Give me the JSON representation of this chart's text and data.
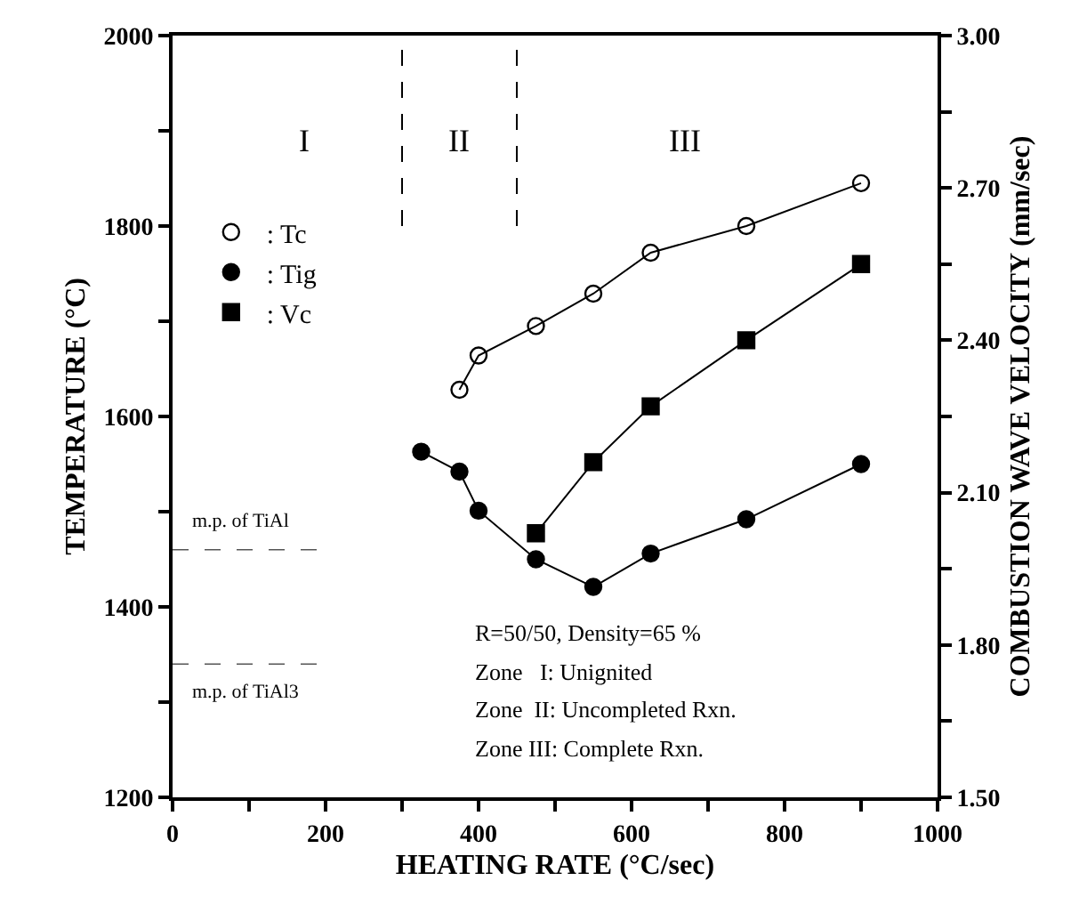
{
  "chart_data": {
    "type": "line",
    "xlabel": "HEATING RATE (°C/sec)",
    "ylabel": "TEMPERATURE (°C)",
    "y2label": "COMBUSTION WAVE VELOCITY (mm/sec)",
    "xlim": [
      0,
      1000
    ],
    "xticks": [
      0,
      {
        "value": 100,
        "label": null
      },
      200,
      {
        "value": 300,
        "label": null
      },
      400,
      {
        "value": 500,
        "label": null
      },
      600,
      {
        "value": 700,
        "label": null
      },
      800,
      {
        "value": 900,
        "label": null
      },
      1000
    ],
    "ylim": [
      1200,
      2000
    ],
    "yticks": [
      1200,
      {
        "value": 1300,
        "label": null
      },
      1400,
      {
        "value": 1500,
        "label": null
      },
      1600,
      {
        "value": 1700,
        "label": null
      },
      1800,
      {
        "value": 1900,
        "label": null
      },
      2000
    ],
    "y2lim": [
      1.5,
      3.0
    ],
    "y2ticks": [
      {
        "value": 1.5,
        "label": "1.50"
      },
      {
        "value": 1.65,
        "label": null
      },
      {
        "value": 1.8,
        "label": "1.80"
      },
      {
        "value": 1.95,
        "label": null
      },
      {
        "value": 2.1,
        "label": "2.10"
      },
      {
        "value": 2.25,
        "label": null
      },
      {
        "value": 2.4,
        "label": "2.40"
      },
      {
        "value": 2.55,
        "label": null
      },
      {
        "value": 2.7,
        "label": "2.70"
      },
      {
        "value": 2.85,
        "label": null
      },
      {
        "value": 3.0,
        "label": "3.00"
      }
    ],
    "legend": "top left",
    "line_style": "solid",
    "series": [
      {
        "name": ": Tc",
        "color": "#000000",
        "marker": "circle-open",
        "x": [
          375,
          400,
          475,
          550,
          625,
          750,
          900
        ],
        "values": [
          1628,
          1664,
          1695,
          1729,
          1772,
          1800,
          1845
        ]
      },
      {
        "name": ": Tig",
        "color": "#000000",
        "marker": "circle",
        "x": [
          325,
          375,
          400,
          475,
          550,
          625,
          750,
          900
        ],
        "values": [
          1563,
          1542,
          1501,
          1450,
          1421,
          1456,
          1492,
          1550
        ]
      },
      {
        "name": ": Vc",
        "color": "#000000",
        "marker": "square-dot",
        "axis": "y2",
        "x": [
          475,
          550,
          625,
          750,
          900
        ],
        "values": [
          2.02,
          2.16,
          2.27,
          2.4,
          2.55
        ]
      }
    ],
    "ref_lines": [
      {
        "axis": "y",
        "value": 1460,
        "label": "m.p. of TiAl",
        "line_style": "dashed"
      },
      {
        "axis": "y",
        "value": 1340,
        "label": "m.p. of TiAl3",
        "line_style": "dashed"
      },
      {
        "axis": "x",
        "value": 300,
        "label": null,
        "line_style": "dashed"
      },
      {
        "axis": "x",
        "value": 450,
        "label": null,
        "line_style": "dashed"
      }
    ],
    "annotations": [
      "I",
      "II",
      "III",
      "R=50/50, Density=65 %",
      "Zone   I: Unignited",
      "Zone  II: Uncompleted Rxn.",
      "Zone III: Complete Rxn."
    ]
  }
}
